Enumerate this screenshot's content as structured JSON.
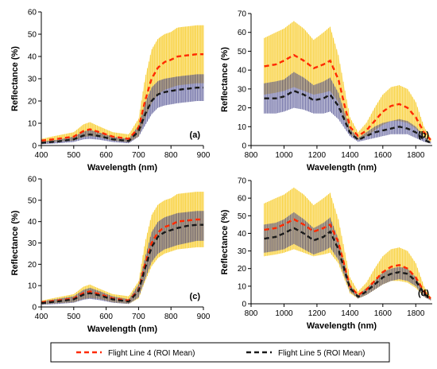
{
  "colors": {
    "flight4_line": "#ff2a00",
    "flight4_band": "#f6c200",
    "flight5_line": "#1a1a1a",
    "flight5_band": "#2a2a7a",
    "axis": "#000000"
  },
  "legend": {
    "entries": [
      {
        "label": "Flight Line 4 (ROI Mean)",
        "series": "flight4"
      },
      {
        "label": "Flight Line 5 (ROI Mean)",
        "series": "flight5"
      }
    ]
  },
  "chart_data": [
    {
      "panel_label": "(a)",
      "type": "line",
      "xlabel": "Wavelength (nm)",
      "ylabel": "Reflectance (%)",
      "xlim": [
        400,
        900
      ],
      "ylim": [
        0,
        60
      ],
      "xticks": [
        400,
        500,
        600,
        700,
        800,
        900
      ],
      "yticks": [
        0,
        10,
        20,
        30,
        40,
        50,
        60
      ],
      "grid": false,
      "x": [
        400,
        450,
        500,
        530,
        550,
        580,
        620,
        670,
        700,
        720,
        740,
        760,
        780,
        800,
        820,
        850,
        880,
        900
      ],
      "series": [
        {
          "name": "Flight Line 4 (ROI Mean)",
          "key": "flight4",
          "values": [
            2.2,
            3.0,
            4.0,
            6.5,
            7.3,
            6.0,
            4.0,
            3.0,
            8.0,
            20.0,
            30.0,
            35.0,
            37.5,
            38.5,
            40.0,
            40.5,
            41.0,
            41.0
          ],
          "upper": [
            3.0,
            4.5,
            6.0,
            9.5,
            10.5,
            8.5,
            6.0,
            5.0,
            12.0,
            30.0,
            43.0,
            48.0,
            50.0,
            51.0,
            53.0,
            53.5,
            54.0,
            54.0
          ],
          "lower": [
            1.2,
            1.8,
            2.2,
            3.8,
            4.2,
            3.8,
            2.2,
            1.5,
            4.0,
            12.0,
            19.0,
            23.0,
            25.0,
            26.0,
            27.0,
            27.5,
            28.0,
            28.0
          ]
        },
        {
          "name": "Flight Line 5 (ROI Mean)",
          "key": "flight5",
          "values": [
            1.2,
            1.8,
            2.8,
            4.5,
            5.0,
            4.2,
            2.8,
            2.0,
            6.5,
            14.0,
            20.0,
            23.0,
            24.0,
            24.5,
            25.0,
            25.5,
            26.0,
            26.0
          ],
          "upper": [
            1.8,
            2.6,
            4.0,
            6.3,
            7.0,
            5.8,
            4.0,
            3.0,
            9.0,
            19.0,
            26.0,
            29.0,
            30.0,
            30.5,
            31.0,
            31.5,
            32.0,
            32.0
          ],
          "lower": [
            0.6,
            1.0,
            1.6,
            2.8,
            3.0,
            2.6,
            1.6,
            1.0,
            4.0,
            9.0,
            14.0,
            17.0,
            18.0,
            18.5,
            19.0,
            19.5,
            20.0,
            20.0
          ]
        }
      ]
    },
    {
      "panel_label": "(b)",
      "type": "line",
      "xlabel": "Wavelength (nm)",
      "ylabel": "Reflectance (%)",
      "xlim": [
        800,
        1900
      ],
      "ylim": [
        0,
        70
      ],
      "xticks": [
        800,
        1000,
        1200,
        1400,
        1600,
        1800
      ],
      "yticks": [
        0,
        10,
        20,
        30,
        40,
        50,
        60,
        70
      ],
      "grid": false,
      "x": [
        880,
        950,
        1000,
        1060,
        1120,
        1180,
        1240,
        1280,
        1330,
        1400,
        1450,
        1500,
        1550,
        1600,
        1650,
        1700,
        1750,
        1800,
        1850,
        1890
      ],
      "series": [
        {
          "name": "Flight Line 4 (ROI Mean)",
          "key": "flight4",
          "values": [
            42,
            43,
            45,
            48,
            45,
            41,
            43,
            45,
            35,
            10,
            5,
            8,
            13,
            18,
            21,
            22,
            20,
            15,
            7,
            3
          ],
          "upper": [
            57,
            60,
            62,
            66,
            62,
            56,
            60,
            63,
            48,
            15,
            7,
            12,
            20,
            27,
            31,
            32,
            30,
            23,
            10,
            4
          ],
          "lower": [
            27,
            28,
            29,
            31,
            29,
            27,
            28,
            29,
            23,
            6,
            3,
            5,
            8,
            11,
            13,
            13,
            12,
            9,
            4,
            2
          ]
        },
        {
          "name": "Flight Line 5 (ROI Mean)",
          "key": "flight5",
          "values": [
            25,
            25,
            26,
            29,
            27,
            24,
            25,
            27,
            21,
            7,
            3,
            5,
            7,
            8,
            9,
            10,
            9,
            7,
            3,
            1.5
          ],
          "upper": [
            33,
            34,
            35,
            39,
            36,
            32,
            34,
            36,
            28,
            9,
            4,
            7,
            10,
            12,
            13,
            14,
            13,
            10,
            5,
            2
          ],
          "lower": [
            17,
            17,
            18,
            20,
            19,
            17,
            17,
            18,
            14,
            5,
            2,
            3,
            4,
            5,
            6,
            6,
            6,
            4,
            2,
            1
          ]
        }
      ]
    },
    {
      "panel_label": "(c)",
      "type": "line",
      "xlabel": "Wavelength (nm)",
      "ylabel": "Reflectance (%)",
      "xlim": [
        400,
        900
      ],
      "ylim": [
        0,
        60
      ],
      "xticks": [
        400,
        500,
        600,
        700,
        800,
        900
      ],
      "yticks": [
        0,
        10,
        20,
        30,
        40,
        50,
        60
      ],
      "grid": false,
      "x": [
        400,
        450,
        500,
        530,
        550,
        580,
        620,
        670,
        700,
        720,
        740,
        760,
        780,
        800,
        820,
        850,
        880,
        900
      ],
      "series": [
        {
          "name": "Flight Line 4 (ROI Mean)",
          "key": "flight4",
          "values": [
            2.2,
            3.0,
            4.0,
            6.5,
            7.3,
            6.0,
            4.0,
            3.0,
            8.0,
            20.0,
            30.0,
            35.0,
            37.5,
            38.5,
            40.0,
            40.5,
            41.0,
            41.0
          ],
          "upper": [
            3.0,
            4.5,
            6.0,
            9.5,
            10.5,
            8.5,
            6.0,
            5.0,
            12.0,
            30.0,
            43.0,
            48.0,
            50.0,
            51.0,
            53.0,
            53.5,
            54.0,
            54.0
          ],
          "lower": [
            1.2,
            1.8,
            2.2,
            3.8,
            4.2,
            3.8,
            2.2,
            1.5,
            4.0,
            12.0,
            19.0,
            23.0,
            25.0,
            26.0,
            27.0,
            27.5,
            28.0,
            28.0
          ]
        },
        {
          "name": "Flight Line 5 (ROI Mean)",
          "key": "flight5",
          "values": [
            1.8,
            2.6,
            3.6,
            5.8,
            6.5,
            5.4,
            3.6,
            2.5,
            7.5,
            18.0,
            28.0,
            33.0,
            35.0,
            36.0,
            37.0,
            38.0,
            38.5,
            38.5
          ],
          "upper": [
            2.6,
            3.8,
            5.0,
            8.0,
            9.0,
            7.4,
            5.0,
            3.6,
            10.5,
            23.0,
            35.0,
            40.0,
            42.0,
            43.0,
            44.0,
            44.5,
            45.0,
            45.0
          ],
          "lower": [
            1.0,
            1.4,
            2.0,
            3.4,
            3.8,
            3.2,
            2.0,
            1.4,
            4.5,
            13.0,
            21.0,
            25.0,
            27.0,
            28.0,
            29.0,
            30.0,
            31.0,
            31.0
          ]
        }
      ]
    },
    {
      "panel_label": "(d)",
      "type": "line",
      "xlabel": "Wavelength (nm)",
      "ylabel": "Reflectance (%)",
      "xlim": [
        800,
        1900
      ],
      "ylim": [
        0,
        70
      ],
      "xticks": [
        800,
        1000,
        1200,
        1400,
        1600,
        1800
      ],
      "yticks": [
        0,
        10,
        20,
        30,
        40,
        50,
        60,
        70
      ],
      "grid": false,
      "x": [
        880,
        950,
        1000,
        1060,
        1120,
        1180,
        1240,
        1280,
        1330,
        1400,
        1450,
        1500,
        1550,
        1600,
        1650,
        1700,
        1750,
        1800,
        1850,
        1890
      ],
      "series": [
        {
          "name": "Flight Line 4 (ROI Mean)",
          "key": "flight4",
          "values": [
            42,
            43,
            45,
            48,
            45,
            41,
            43,
            45,
            35,
            10,
            5,
            8,
            13,
            18,
            21,
            22,
            20,
            15,
            7,
            3
          ],
          "upper": [
            57,
            60,
            62,
            66,
            62,
            56,
            60,
            63,
            48,
            15,
            7,
            12,
            20,
            27,
            31,
            32,
            30,
            23,
            10,
            4
          ],
          "lower": [
            27,
            28,
            29,
            31,
            29,
            27,
            28,
            29,
            23,
            6,
            3,
            5,
            8,
            11,
            13,
            13,
            12,
            9,
            4,
            2
          ]
        },
        {
          "name": "Flight Line 5 (ROI Mean)",
          "key": "flight5",
          "values": [
            37,
            38,
            40,
            43,
            40,
            36,
            38,
            41,
            31,
            9,
            4,
            7,
            11,
            15,
            17,
            18,
            17,
            13,
            6,
            2.5
          ],
          "upper": [
            45,
            46,
            48,
            52,
            48,
            43,
            46,
            49,
            37,
            11,
            5,
            9,
            13,
            18,
            20,
            21,
            20,
            15,
            7,
            3
          ],
          "lower": [
            29,
            30,
            31,
            34,
            31,
            28,
            30,
            32,
            25,
            7,
            3,
            5,
            8,
            11,
            13,
            14,
            13,
            10,
            4,
            2
          ]
        }
      ]
    }
  ]
}
